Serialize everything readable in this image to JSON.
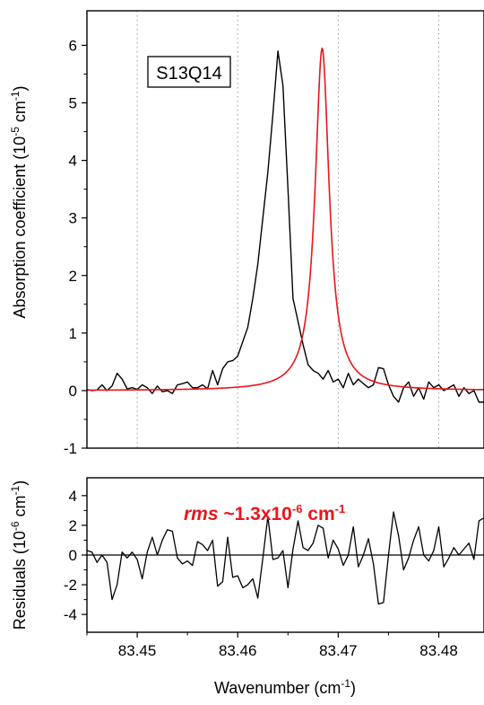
{
  "chart_data": [
    {
      "type": "line",
      "panel": "top",
      "annotation": "S13Q14",
      "xlabel": "",
      "ylabel": "Absorption coefficient (10",
      "ylabel_sup": "-5",
      "ylabel_unit": " cm",
      "ylabel_unit_sup": "-1",
      "ylabel_close": ")",
      "xlim": [
        83.445,
        83.4845
      ],
      "ylim": [
        -1,
        6.6
      ],
      "yticks": [
        -1,
        0,
        1,
        2,
        3,
        4,
        5,
        6
      ],
      "grid": "dotted-vertical",
      "series": [
        {
          "color": "#000000",
          "x": [
            83.445,
            83.4455,
            83.446,
            83.4465,
            83.447,
            83.4475,
            83.448,
            83.4485,
            83.449,
            83.4495,
            83.45,
            83.4505,
            83.451,
            83.4515,
            83.452,
            83.4525,
            83.453,
            83.4535,
            83.454,
            83.4545,
            83.455,
            83.4555,
            83.456,
            83.4565,
            83.457,
            83.4575,
            83.458,
            83.4585,
            83.459,
            83.4595,
            83.46,
            83.4605,
            83.461,
            83.4615,
            83.462,
            83.4625,
            83.463,
            83.4635,
            83.464,
            83.4645,
            83.465,
            83.4655,
            83.466,
            83.4665,
            83.467,
            83.4675,
            83.468,
            83.4685,
            83.469,
            83.4695,
            83.47,
            83.4705,
            83.471,
            83.4715,
            83.472,
            83.4725,
            83.473,
            83.4735,
            83.474,
            83.4745,
            83.475,
            83.4755,
            83.476,
            83.4765,
            83.477,
            83.4775,
            83.478,
            83.4785,
            83.479,
            83.4795,
            83.48,
            83.4805,
            83.481,
            83.4815,
            83.482,
            83.4825,
            83.483,
            83.4835,
            83.484,
            83.4845
          ],
          "y": [
            0.02,
            0.0,
            0.01,
            0.1,
            0.0,
            0.08,
            0.3,
            0.2,
            0.03,
            0.05,
            0.02,
            0.1,
            0.05,
            -0.05,
            0.08,
            -0.02,
            0.0,
            -0.05,
            0.1,
            0.12,
            0.15,
            0.05,
            0.05,
            0.1,
            0.03,
            0.35,
            0.1,
            0.38,
            0.5,
            0.52,
            0.6,
            0.85,
            1.1,
            1.6,
            2.2,
            3.0,
            3.8,
            4.8,
            5.9,
            5.3,
            3.5,
            1.6,
            1.2,
            0.8,
            0.45,
            0.35,
            0.3,
            0.2,
            0.35,
            0.15,
            0.2,
            0.05,
            0.3,
            0.1,
            0.2,
            0.12,
            0.05,
            0.1,
            0.4,
            0.38,
            0.1,
            -0.1,
            -0.2,
            0.05,
            0.15,
            -0.1,
            0.05,
            -0.15,
            0.15,
            0.05,
            0.1,
            0.0,
            0.05,
            0.1,
            -0.1,
            0.05,
            -0.05,
            0.0,
            -0.2,
            -0.2
          ]
        },
        {
          "color": "#e8161b",
          "model": "lorentzian",
          "center": 83.4684,
          "amplitude": 5.95,
          "hwhm": 0.00085,
          "baseline": 0.0
        }
      ]
    },
    {
      "type": "line",
      "panel": "bottom",
      "annotation_bold_italic": "rms",
      "annotation_main": " ~1.3x10",
      "annotation_sup": "-6",
      "annotation_unit": " cm",
      "annotation_unit_sup": "-1",
      "annotation_color": "#e8161b",
      "xlabel": "Wavenumber (cm",
      "xlabel_sup": "-1",
      "xlabel_close": ")",
      "ylabel": "Residuals (10",
      "ylabel_sup": "-6",
      "ylabel_unit": " cm",
      "ylabel_unit_sup": "-1",
      "ylabel_close": ")",
      "xlim": [
        83.445,
        83.4845
      ],
      "ylim": [
        -5.2,
        5.2
      ],
      "xticks": [
        83.45,
        83.46,
        83.47,
        83.48
      ],
      "xtick_labels": [
        "83.45",
        "83.46",
        "83.47",
        "83.48"
      ],
      "yticks": [
        -4,
        -2,
        0,
        2,
        4
      ],
      "zero_line": true,
      "series": [
        {
          "color": "#000000",
          "x": [
            83.445,
            83.4455,
            83.446,
            83.4465,
            83.447,
            83.4475,
            83.448,
            83.4485,
            83.449,
            83.4495,
            83.45,
            83.4505,
            83.451,
            83.4515,
            83.452,
            83.4525,
            83.453,
            83.4535,
            83.454,
            83.4545,
            83.455,
            83.4555,
            83.456,
            83.4565,
            83.457,
            83.4575,
            83.458,
            83.4585,
            83.459,
            83.4595,
            83.46,
            83.4605,
            83.461,
            83.4615,
            83.462,
            83.4625,
            83.463,
            83.4635,
            83.464,
            83.4645,
            83.465,
            83.4655,
            83.466,
            83.4665,
            83.467,
            83.4675,
            83.468,
            83.4685,
            83.469,
            83.4695,
            83.47,
            83.4705,
            83.471,
            83.4715,
            83.472,
            83.4725,
            83.473,
            83.4735,
            83.474,
            83.4745,
            83.475,
            83.4755,
            83.476,
            83.4765,
            83.477,
            83.4775,
            83.478,
            83.4785,
            83.479,
            83.4795,
            83.48,
            83.4805,
            83.481,
            83.4815,
            83.482,
            83.4825,
            83.483,
            83.4835,
            83.484,
            83.4845
          ],
          "y": [
            0.3,
            0.2,
            -0.5,
            0.0,
            -0.5,
            -3.0,
            -2.0,
            0.2,
            -0.2,
            0.2,
            -0.3,
            -1.6,
            0.2,
            1.2,
            0.0,
            1.0,
            1.7,
            1.6,
            -0.2,
            -0.6,
            -0.4,
            -0.7,
            0.9,
            0.7,
            0.3,
            1.0,
            -2.1,
            -1.8,
            1.2,
            -1.5,
            -1.4,
            -2.2,
            -2.0,
            -1.6,
            -2.9,
            -0.2,
            2.6,
            -0.3,
            -0.2,
            0.3,
            -2.2,
            0.4,
            2.3,
            0.5,
            0.3,
            0.8,
            2.0,
            1.8,
            -0.2,
            1.0,
            0.4,
            -0.7,
            0.0,
            1.9,
            -0.8,
            0.0,
            1.1,
            -0.6,
            -3.3,
            -3.2,
            0.0,
            2.9,
            1.3,
            -1.0,
            -0.2,
            1.0,
            1.9,
            0.0,
            -0.4,
            0.3,
            1.9,
            -0.8,
            -0.2,
            0.5,
            0.0,
            0.4,
            0.8,
            -0.3,
            2.3,
            2.5
          ]
        }
      ]
    }
  ]
}
